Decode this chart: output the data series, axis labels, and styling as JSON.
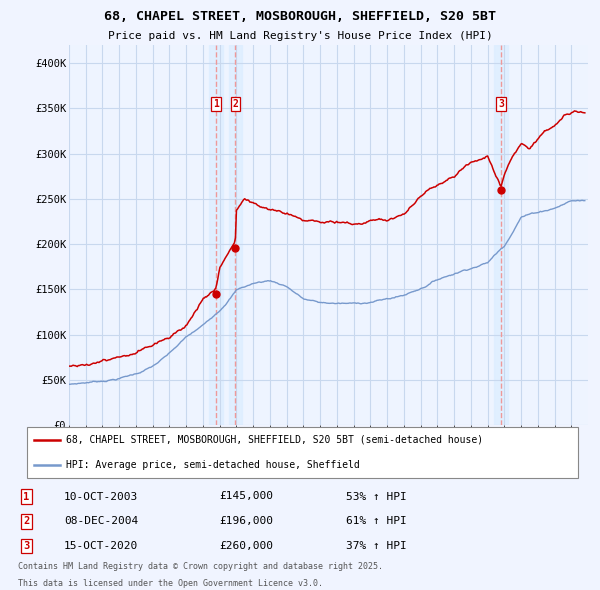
{
  "title_line1": "68, CHAPEL STREET, MOSBOROUGH, SHEFFIELD, S20 5BT",
  "title_line2": "Price paid vs. HM Land Registry's House Price Index (HPI)",
  "ylim": [
    0,
    420000
  ],
  "yticks": [
    0,
    50000,
    100000,
    150000,
    200000,
    250000,
    300000,
    350000,
    400000
  ],
  "ytick_labels": [
    "£0",
    "£50K",
    "£100K",
    "£150K",
    "£200K",
    "£250K",
    "£300K",
    "£350K",
    "£400K"
  ],
  "xlim_start": 1995.0,
  "xlim_end": 2025.99,
  "red_line_color": "#cc0000",
  "blue_line_color": "#7799cc",
  "vline_color": "#ee9999",
  "vband_color": "#ddeeff",
  "marker_box_color": "#cc0000",
  "plot_bg_color": "#eef4ff",
  "grid_color": "#c8d8ee",
  "legend_line1": "68, CHAPEL STREET, MOSBOROUGH, SHEFFIELD, S20 5BT (semi-detached house)",
  "legend_line2": "HPI: Average price, semi-detached house, Sheffield",
  "transactions": [
    {
      "num": 1,
      "date": "10-OCT-2003",
      "price": 145000,
      "pct": "53%",
      "direction": "↑",
      "year": 2003.78
    },
    {
      "num": 2,
      "date": "08-DEC-2004",
      "price": 196000,
      "pct": "61%",
      "direction": "↑",
      "year": 2004.93
    },
    {
      "num": 3,
      "date": "15-OCT-2020",
      "price": 260000,
      "pct": "37%",
      "direction": "↑",
      "year": 2020.79
    }
  ],
  "footer_line1": "Contains HM Land Registry data © Crown copyright and database right 2025.",
  "footer_line2": "This data is licensed under the Open Government Licence v3.0.",
  "background_color": "#f0f4ff"
}
